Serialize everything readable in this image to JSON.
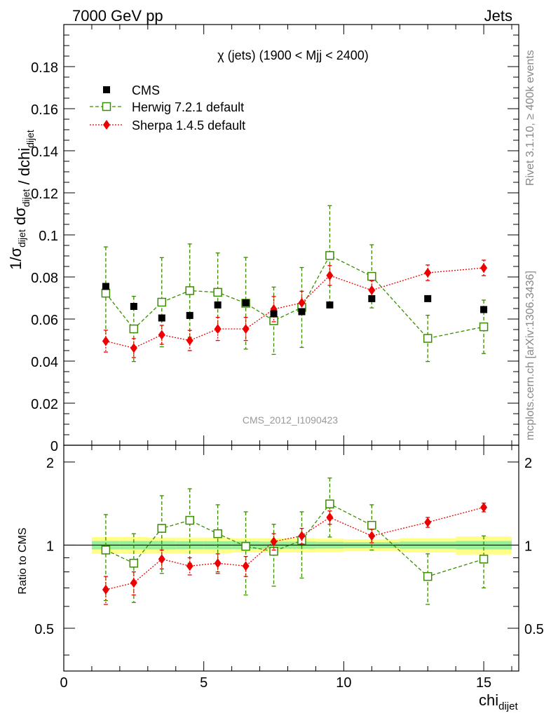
{
  "header": {
    "left": "7000 GeV pp",
    "right": "Jets",
    "side_top": "Rivet 3.1.10, ≥ 400k events",
    "side_bottom": "mcplots.cern.ch [arXiv:1306.3436]",
    "watermark": "CMS_2012_I1090423"
  },
  "chart_data": [
    {
      "panel": "main",
      "type": "scatter",
      "title": "χ (jets) (1900 < Mjj < 2400)",
      "ylabel": "1/σ_dijet dσ_dijet / dchi_dijet",
      "xlim": [
        0,
        16.25
      ],
      "ylim": [
        0,
        0.2
      ],
      "yticks": [
        0,
        0.02,
        0.04,
        0.06,
        0.08,
        0.1,
        0.12,
        0.14,
        0.16,
        0.18
      ],
      "ytick_labels": [
        "0",
        "0.02",
        "0.04",
        "0.06",
        "0.08",
        "0.1",
        "0.12",
        "0.14",
        "0.16",
        "0.18"
      ],
      "legend_position": "top-left",
      "series": [
        {
          "name": "CMS",
          "color": "#000000",
          "marker": "filled-square",
          "x": [
            1.5,
            2.5,
            3.5,
            4.5,
            5.5,
            6.5,
            7.5,
            8.5,
            9.5,
            11,
            13,
            15
          ],
          "y": [
            0.0755,
            0.066,
            0.0605,
            0.0617,
            0.0667,
            0.0677,
            0.0625,
            0.0635,
            0.0667,
            0.0697,
            0.0697,
            0.0645
          ],
          "err": [
            0.001,
            0.001,
            0.001,
            0.001,
            0.001,
            0.001,
            0.001,
            0.001,
            0.001,
            0.001,
            0.001,
            0.001
          ]
        },
        {
          "name": "Herwig 7.2.1 default",
          "color": "#3a8c00",
          "marker": "open-square",
          "line": "dashed",
          "x": [
            1.5,
            2.5,
            3.5,
            4.5,
            5.5,
            6.5,
            7.5,
            8.5,
            9.5,
            11,
            13,
            15
          ],
          "y": [
            0.0723,
            0.0553,
            0.068,
            0.0735,
            0.0727,
            0.0675,
            0.0592,
            0.0655,
            0.0902,
            0.0803,
            0.0508,
            0.0563
          ],
          "err": [
            0.022,
            0.0155,
            0.0212,
            0.0222,
            0.0187,
            0.0218,
            0.016,
            0.019,
            0.0237,
            0.015,
            0.011,
            0.0127
          ]
        },
        {
          "name": "Sherpa 1.4.5 default",
          "color": "#ee0000",
          "marker": "filled-diamond",
          "line": "dotted",
          "x": [
            1.5,
            2.5,
            3.5,
            4.5,
            5.5,
            6.5,
            7.5,
            8.5,
            9.5,
            11,
            13,
            15
          ],
          "y": [
            0.0495,
            0.0462,
            0.0525,
            0.0498,
            0.0553,
            0.0553,
            0.0647,
            0.0677,
            0.0807,
            0.0737,
            0.082,
            0.0843
          ],
          "err": [
            0.0052,
            0.0045,
            0.0045,
            0.0048,
            0.0055,
            0.0055,
            0.006,
            0.0055,
            0.0047,
            0.0045,
            0.0037,
            0.0037
          ]
        }
      ]
    },
    {
      "panel": "ratio",
      "type": "scatter",
      "ylabel": "Ratio to CMS",
      "xlabel": "chi_dijet",
      "xlim": [
        0,
        16.25
      ],
      "ylim": [
        0.35,
        2.3
      ],
      "yticks": [
        0.5,
        1,
        2
      ],
      "ytick_labels": [
        "0.5",
        "1",
        "2"
      ],
      "xticks": [
        0,
        5,
        10,
        15
      ],
      "xtick_labels": [
        "0",
        "5",
        "10",
        "15"
      ],
      "bands": {
        "bin_edges": [
          1,
          2,
          3,
          4,
          5,
          6,
          7,
          8,
          9,
          10,
          12,
          14,
          16
        ],
        "yellow_halfwidth": [
          0.07,
          0.07,
          0.065,
          0.065,
          0.065,
          0.06,
          0.06,
          0.06,
          0.055,
          0.05,
          0.06,
          0.075
        ],
        "green_halfwidth": [
          0.035,
          0.035,
          0.035,
          0.033,
          0.033,
          0.032,
          0.03,
          0.03,
          0.028,
          0.025,
          0.03,
          0.035
        ]
      },
      "series": [
        {
          "name": "Herwig 7.2.1 default",
          "color": "#3a8c00",
          "marker": "open-square",
          "line": "dashed",
          "x": [
            1.5,
            2.5,
            3.5,
            4.5,
            5.5,
            6.5,
            7.5,
            8.5,
            9.5,
            11,
            13,
            15
          ],
          "y": [
            0.96,
            0.86,
            1.15,
            1.23,
            1.1,
            0.99,
            0.95,
            1.04,
            1.41,
            1.18,
            0.77,
            0.89
          ],
          "err": [
            0.33,
            0.24,
            0.36,
            0.37,
            0.3,
            0.33,
            0.24,
            0.28,
            0.34,
            0.22,
            0.16,
            0.19
          ]
        },
        {
          "name": "Sherpa 1.4.5 default",
          "color": "#ee0000",
          "marker": "filled-diamond",
          "line": "dotted",
          "x": [
            1.5,
            2.5,
            3.5,
            4.5,
            5.5,
            6.5,
            7.5,
            8.5,
            9.5,
            11,
            13,
            15
          ],
          "y": [
            0.69,
            0.73,
            0.89,
            0.84,
            0.86,
            0.84,
            1.03,
            1.08,
            1.26,
            1.08,
            1.21,
            1.37
          ],
          "err": [
            0.08,
            0.07,
            0.07,
            0.06,
            0.07,
            0.07,
            0.07,
            0.07,
            0.07,
            0.06,
            0.05,
            0.05
          ]
        }
      ]
    }
  ]
}
